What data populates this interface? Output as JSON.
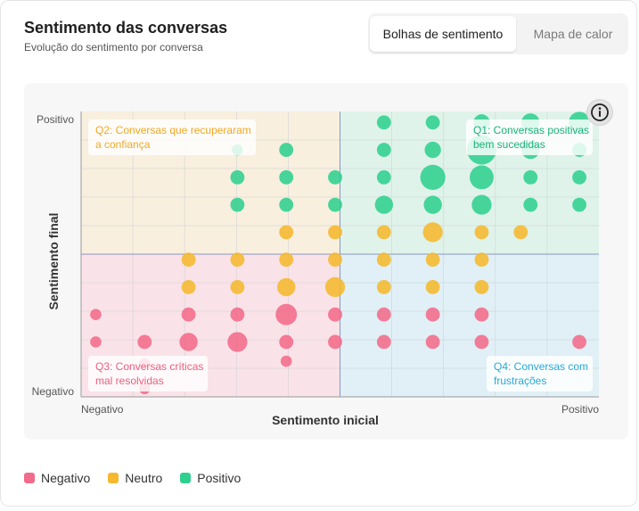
{
  "header": {
    "title": "Sentimento das conversas",
    "subtitle": "Evolução do sentimento por conversa"
  },
  "tabs": [
    {
      "label": "Bolhas de sentimento",
      "active": true
    },
    {
      "label": "Mapa de calor",
      "active": false
    }
  ],
  "info_icon": "info-icon",
  "colors": {
    "Negativo": "#f26b8a",
    "Neutro": "#f5b82e",
    "Positivo": "#2fd08f",
    "q1_bg": "#e0f3ea",
    "q2_bg": "#f8efdf",
    "q3_bg": "#f9e3e8",
    "q4_bg": "#e0f0f6",
    "q1_text": "#19b27a",
    "q2_text": "#f0a824",
    "q3_text": "#ef5c7e",
    "q4_text": "#27a9d8"
  },
  "chart_data": {
    "type": "scatter",
    "variant": "bubble",
    "title": "",
    "xlabel": "Sentimento inicial",
    "ylabel": "Sentimento final",
    "x_axis_labels": {
      "min": "Negativo",
      "max": "Positivo"
    },
    "y_axis_labels": {
      "min": "Negativo",
      "max": "Positivo"
    },
    "xlim": [
      0,
      10.6
    ],
    "ylim": [
      0,
      10.4
    ],
    "grid": true,
    "quadrant_split": {
      "x": 5.3,
      "y": 5.2
    },
    "quadrants": [
      {
        "id": "q1",
        "label": "Q1: Conversas positivas bem sucedidas",
        "lines": [
          "Q1: Conversas positivas",
          "bem sucedidas"
        ]
      },
      {
        "id": "q2",
        "label": "Q2: Conversas que recuperaram a confiança",
        "lines": [
          "Q2: Conversas que recuperaram",
          "a confiança"
        ]
      },
      {
        "id": "q3",
        "label": "Q3: Conversas críticas mal resolvidas",
        "lines": [
          "Q3: Conversas críticas",
          "mal resolvidas"
        ]
      },
      {
        "id": "q4",
        "label": "Q4: Conversas com frustrações",
        "lines": [
          "Q4: Conversas com",
          "frustrações"
        ]
      }
    ],
    "legend": [
      "Negativo",
      "Neutro",
      "Positivo"
    ],
    "legend_position": "bottom-left",
    "series": [
      {
        "name": "Positivo",
        "points": [
          {
            "x": 6.2,
            "y": 10.0,
            "s": 2
          },
          {
            "x": 7.2,
            "y": 10.0,
            "s": 2
          },
          {
            "x": 8.2,
            "y": 10.0,
            "s": 3
          },
          {
            "x": 9.2,
            "y": 10.0,
            "s": 4
          },
          {
            "x": 10.2,
            "y": 10.0,
            "s": 6
          },
          {
            "x": 6.2,
            "y": 9.0,
            "s": 2
          },
          {
            "x": 7.2,
            "y": 9.0,
            "s": 3
          },
          {
            "x": 8.2,
            "y": 9.0,
            "s": 13
          },
          {
            "x": 9.2,
            "y": 9.0,
            "s": 4
          },
          {
            "x": 10.2,
            "y": 9.0,
            "s": 2
          },
          {
            "x": 4.2,
            "y": 9.0,
            "s": 2
          },
          {
            "x": 3.2,
            "y": 9.0,
            "s": 1
          },
          {
            "x": 3.2,
            "y": 8.0,
            "s": 2
          },
          {
            "x": 4.2,
            "y": 8.0,
            "s": 2
          },
          {
            "x": 5.2,
            "y": 8.0,
            "s": 2
          },
          {
            "x": 6.2,
            "y": 8.0,
            "s": 2
          },
          {
            "x": 7.2,
            "y": 8.0,
            "s": 9
          },
          {
            "x": 8.2,
            "y": 8.0,
            "s": 8
          },
          {
            "x": 9.2,
            "y": 8.0,
            "s": 2
          },
          {
            "x": 10.2,
            "y": 8.0,
            "s": 2
          },
          {
            "x": 3.2,
            "y": 7.0,
            "s": 2
          },
          {
            "x": 4.2,
            "y": 7.0,
            "s": 2
          },
          {
            "x": 5.2,
            "y": 7.0,
            "s": 2
          },
          {
            "x": 6.2,
            "y": 7.0,
            "s": 4
          },
          {
            "x": 7.2,
            "y": 7.0,
            "s": 4
          },
          {
            "x": 8.2,
            "y": 7.0,
            "s": 5
          },
          {
            "x": 9.2,
            "y": 7.0,
            "s": 2
          },
          {
            "x": 10.2,
            "y": 7.0,
            "s": 2
          }
        ]
      },
      {
        "name": "Neutro",
        "points": [
          {
            "x": 5.2,
            "y": 6.0,
            "s": 2
          },
          {
            "x": 4.2,
            "y": 6.0,
            "s": 2
          },
          {
            "x": 6.2,
            "y": 6.0,
            "s": 2
          },
          {
            "x": 7.2,
            "y": 6.0,
            "s": 5
          },
          {
            "x": 8.2,
            "y": 6.0,
            "s": 2
          },
          {
            "x": 9.0,
            "y": 6.0,
            "s": 2
          },
          {
            "x": 2.2,
            "y": 5.0,
            "s": 2
          },
          {
            "x": 3.2,
            "y": 5.0,
            "s": 2
          },
          {
            "x": 4.2,
            "y": 5.0,
            "s": 2
          },
          {
            "x": 5.2,
            "y": 5.0,
            "s": 2
          },
          {
            "x": 6.2,
            "y": 5.0,
            "s": 2
          },
          {
            "x": 7.2,
            "y": 5.0,
            "s": 2
          },
          {
            "x": 8.2,
            "y": 5.0,
            "s": 2
          },
          {
            "x": 2.2,
            "y": 4.0,
            "s": 2
          },
          {
            "x": 3.2,
            "y": 4.0,
            "s": 2
          },
          {
            "x": 4.2,
            "y": 4.0,
            "s": 4
          },
          {
            "x": 5.2,
            "y": 4.0,
            "s": 5
          },
          {
            "x": 6.2,
            "y": 4.0,
            "s": 2
          },
          {
            "x": 7.2,
            "y": 4.0,
            "s": 2
          },
          {
            "x": 8.2,
            "y": 4.0,
            "s": 2
          }
        ]
      },
      {
        "name": "Negativo",
        "points": [
          {
            "x": 0.3,
            "y": 3.0,
            "s": 1
          },
          {
            "x": 2.2,
            "y": 3.0,
            "s": 2
          },
          {
            "x": 3.2,
            "y": 3.0,
            "s": 2
          },
          {
            "x": 4.2,
            "y": 3.0,
            "s": 6
          },
          {
            "x": 5.2,
            "y": 3.0,
            "s": 2
          },
          {
            "x": 6.2,
            "y": 3.0,
            "s": 2
          },
          {
            "x": 7.2,
            "y": 3.0,
            "s": 2
          },
          {
            "x": 8.2,
            "y": 3.0,
            "s": 2
          },
          {
            "x": 0.3,
            "y": 2.0,
            "s": 1
          },
          {
            "x": 1.3,
            "y": 2.0,
            "s": 2
          },
          {
            "x": 2.2,
            "y": 2.0,
            "s": 4
          },
          {
            "x": 3.2,
            "y": 2.0,
            "s": 5
          },
          {
            "x": 4.2,
            "y": 2.0,
            "s": 2
          },
          {
            "x": 5.2,
            "y": 2.0,
            "s": 2
          },
          {
            "x": 6.2,
            "y": 2.0,
            "s": 2
          },
          {
            "x": 7.2,
            "y": 2.0,
            "s": 2
          },
          {
            "x": 8.2,
            "y": 2.0,
            "s": 2
          },
          {
            "x": 10.2,
            "y": 2.0,
            "s": 2
          },
          {
            "x": 4.2,
            "y": 1.3,
            "s": 1
          },
          {
            "x": 1.3,
            "y": 1.2,
            "s": 1
          },
          {
            "x": 1.3,
            "y": 0.3,
            "s": 1
          }
        ]
      }
    ]
  }
}
